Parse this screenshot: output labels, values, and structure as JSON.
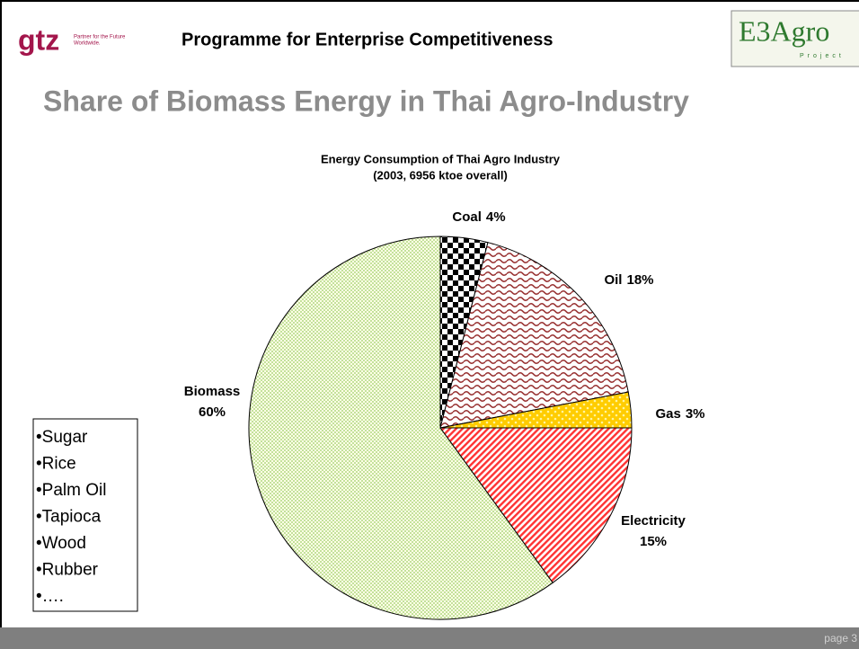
{
  "header": {
    "logo": "gtz",
    "logo_tagline": [
      "Partner for the Future",
      "Worldwide."
    ],
    "programme": "Programme for Enterprise Competitiveness",
    "right_logo": "E3Agro",
    "right_logo_sub": "Project"
  },
  "slide_title": "Share of Biomass Energy in Thai Agro-Industry",
  "chart_data": {
    "type": "pie",
    "title": [
      "Energy Consumption of Thai Agro Industry",
      "(2003, 6956 ktoe overall)"
    ],
    "categories": [
      "Coal",
      "Oil",
      "Gas",
      "Electricity",
      "Biomass"
    ],
    "values": [
      4,
      18,
      3,
      15,
      60
    ],
    "value_labels": [
      "4%",
      "18%",
      "3%",
      "15%",
      "60%"
    ],
    "colors": [
      "#000000",
      "#993333",
      "#ffcc00",
      "#ff3333",
      "#ccee99"
    ]
  },
  "list": [
    "•Sugar",
    "•Rice",
    "•Palm Oil",
    "•Tapioca",
    "•Wood",
    "•Rubber",
    "•…."
  ],
  "footer": {
    "page": "page 3"
  }
}
